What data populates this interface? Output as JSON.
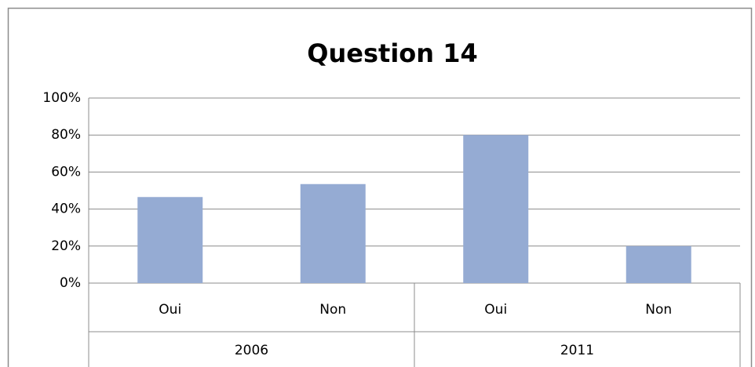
{
  "chart_data": {
    "type": "bar",
    "title": "Question 14",
    "categories": [
      "Oui",
      "Non",
      "Oui",
      "Non"
    ],
    "category_groups": [
      "2006",
      "2011"
    ],
    "values": [
      46.5,
      53.5,
      80,
      20
    ],
    "color": "#95abd3",
    "ylim": [
      0,
      100
    ],
    "yticks": [
      {
        "value": 0,
        "label": "0%"
      },
      {
        "value": 20,
        "label": "20%"
      },
      {
        "value": 40,
        "label": "40%"
      },
      {
        "value": 60,
        "label": "60%"
      },
      {
        "value": 80,
        "label": "80%"
      },
      {
        "value": 100,
        "label": "100%"
      }
    ],
    "grid": true
  }
}
